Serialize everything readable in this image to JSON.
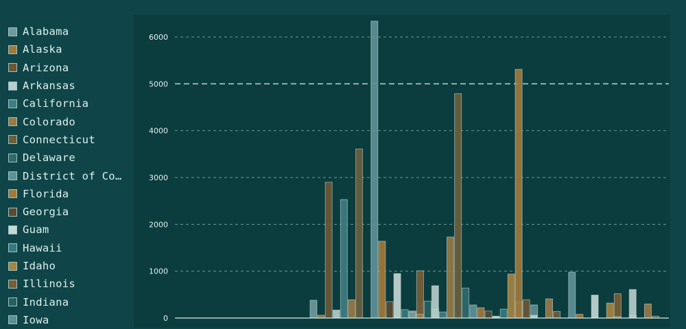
{
  "chart_data": {
    "type": "bar",
    "title": "",
    "xlabel": "",
    "ylabel": "",
    "ylim": [
      0,
      6350
    ],
    "yticks": [
      0,
      1000,
      2000,
      3000,
      4000,
      5000,
      6000
    ],
    "grid": true,
    "legend_position": "left",
    "legend_truncated": [
      "District of Co…"
    ],
    "series": [
      {
        "name": "Alabama",
        "color": "#6f9aa0"
      },
      {
        "name": "Alaska",
        "color": "#a07a3c"
      },
      {
        "name": "Arizona",
        "color": "#6d5634"
      },
      {
        "name": "Arkansas",
        "color": "#b9cfcc"
      },
      {
        "name": "California",
        "color": "#3f7d84"
      },
      {
        "name": "Colorado",
        "color": "#9a7a45"
      },
      {
        "name": "Connecticut",
        "color": "#6b5f3c"
      },
      {
        "name": "Delaware",
        "color": "#2f6a6c"
      },
      {
        "name": "District of Co…",
        "color": "#5f9298"
      },
      {
        "name": "Florida",
        "color": "#a3793a"
      },
      {
        "name": "Georgia",
        "color": "#5a4a2f"
      },
      {
        "name": "Guam",
        "color": "#c6d8d5"
      },
      {
        "name": "Hawaii",
        "color": "#357a82"
      },
      {
        "name": "Idaho",
        "color": "#a8843e"
      },
      {
        "name": "Illinois",
        "color": "#7a5e34"
      },
      {
        "name": "Indiana",
        "color": "#25605f"
      },
      {
        "name": "Iowa",
        "color": "#5e8f96"
      }
    ],
    "groups": [
      [
        0,
        0,
        0,
        0,
        0,
        0,
        0,
        0,
        0,
        0,
        0,
        0,
        0,
        0,
        0,
        0,
        0
      ],
      [
        380,
        60,
        2900,
        170,
        2530,
        390,
        3610,
        0,
        6340,
        1640,
        350,
        950,
        180,
        150,
        1010,
        360,
        200
      ],
      [
        130,
        80,
        0,
        690,
        130,
        1730,
        4790,
        640,
        280,
        220,
        150,
        40,
        190,
        940,
        350,
        0,
        280
      ],
      [
        0,
        5310,
        390,
        60,
        0,
        410,
        140,
        0,
        980,
        80,
        0,
        490,
        0,
        320,
        520,
        0,
        60
      ],
      [
        0,
        30,
        0,
        610,
        0,
        300,
        40,
        0,
        0,
        0,
        0,
        0,
        0,
        0,
        0,
        0,
        0
      ]
    ]
  }
}
